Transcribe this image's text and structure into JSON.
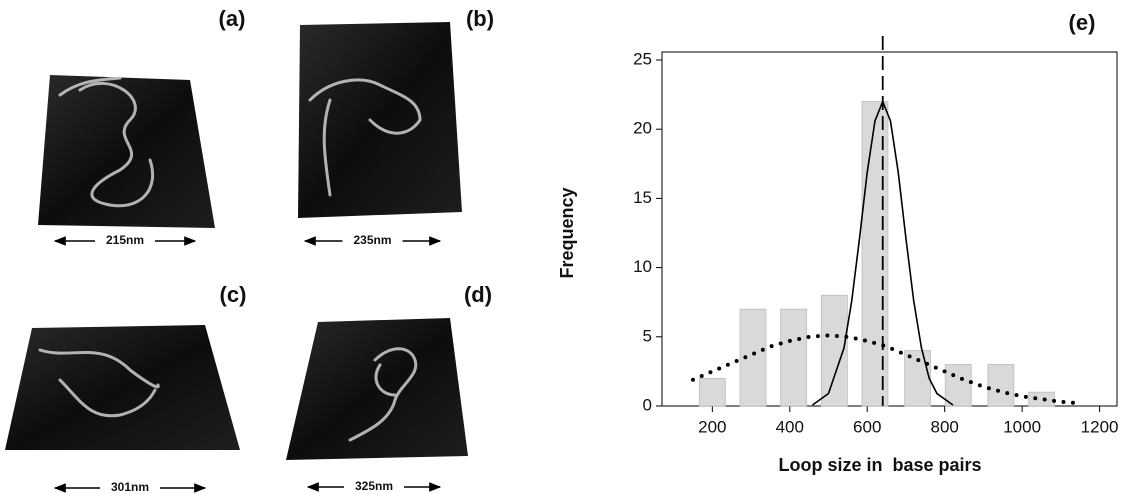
{
  "panels": [
    {
      "label": "(a)",
      "scale": "215nm"
    },
    {
      "label": "(b)",
      "scale": "235nm"
    },
    {
      "label": "(c)",
      "scale": "301nm"
    },
    {
      "label": "(d)",
      "scale": "325nm"
    }
  ],
  "chart_data": {
    "type": "bar",
    "label": "(e)",
    "x_label": "Loop size in  base pairs",
    "y_label": "Frequency",
    "xlim": [
      70,
      1245
    ],
    "xticks": [
      200,
      400,
      600,
      800,
      1000,
      1200
    ],
    "ylim": [
      0,
      25
    ],
    "yticks": [
      0,
      5,
      10,
      15,
      20,
      25
    ],
    "bars": {
      "x": [
        200,
        305,
        410,
        515,
        620,
        730,
        835,
        945,
        1050
      ],
      "values": [
        2,
        7,
        7,
        8,
        22,
        4,
        3,
        3,
        1
      ],
      "color": "#d9d9d9"
    },
    "curves": [
      {
        "style": "solid",
        "color": "#000000",
        "x": [
          460,
          500,
          540,
          560,
          580,
          600,
          620,
          640,
          660,
          680,
          700,
          720,
          740,
          760,
          780,
          820
        ],
        "values": [
          0.1,
          0.9,
          4.2,
          7.6,
          12.1,
          16.9,
          20.6,
          22,
          20.6,
          16.9,
          12.1,
          7.6,
          4.2,
          2.0,
          0.9,
          0.1
        ]
      },
      {
        "style": "dotted",
        "color": "#000000",
        "x": [
          150,
          200,
          250,
          300,
          350,
          400,
          450,
          500,
          550,
          600,
          650,
          700,
          750,
          800,
          850,
          900,
          950,
          1000,
          1050,
          1100,
          1150
        ],
        "values": [
          1.9,
          2.5,
          3.1,
          3.7,
          4.3,
          4.7,
          5.0,
          5.1,
          5.0,
          4.7,
          4.3,
          3.7,
          3.1,
          2.5,
          1.9,
          1.4,
          1.0,
          0.7,
          0.5,
          0.3,
          0.2
        ]
      }
    ],
    "vline": 640
  }
}
